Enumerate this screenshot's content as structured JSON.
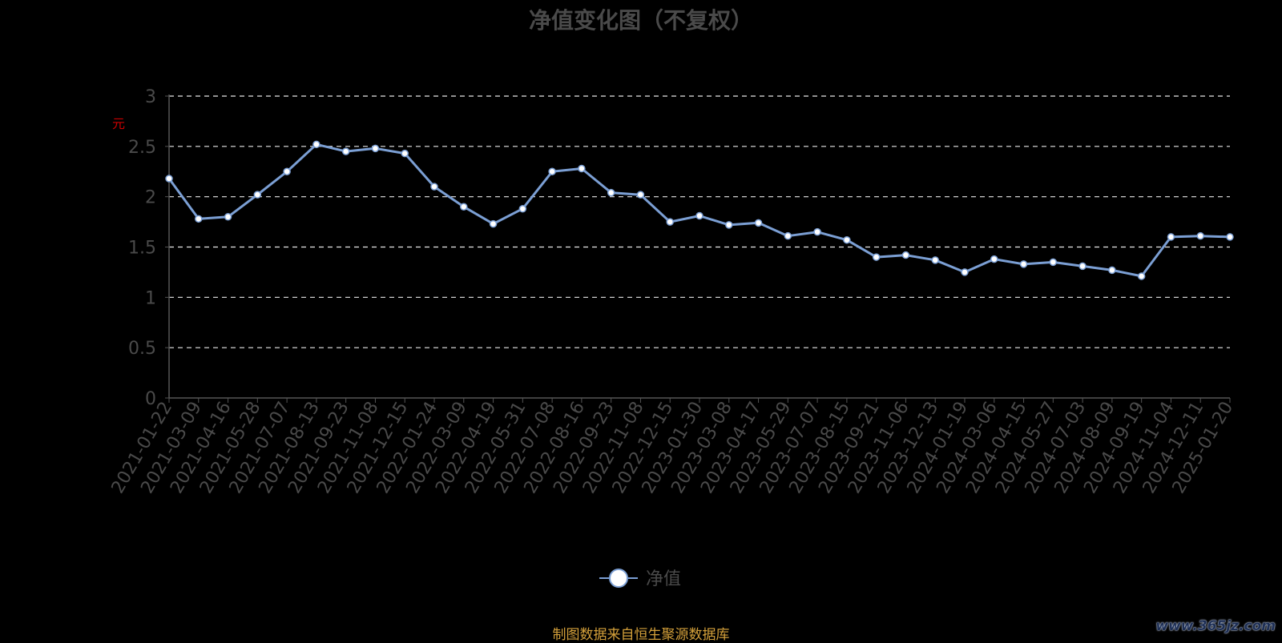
{
  "chart_data": {
    "type": "line",
    "title": "净值变化图（不复权）",
    "ylabel": "元",
    "ylim": [
      0,
      3
    ],
    "y_ticks": [
      "0",
      "0.5",
      "1",
      "1.5",
      "2",
      "2.5",
      "3"
    ],
    "grid": true,
    "legend_position": "bottom",
    "x_tick_labels": [
      "2021-01-22",
      "2021-03-09",
      "2021-04-16",
      "2021-05-28",
      "2021-07-07",
      "2021-08-13",
      "2021-09-23",
      "2021-11-08",
      "2021-12-15",
      "2022-01-24",
      "2022-03-09",
      "2022-04-19",
      "2022-05-31",
      "2022-07-08",
      "2022-08-16",
      "2022-09-23",
      "2022-11-08",
      "2022-12-15",
      "2023-01-30",
      "2023-03-08",
      "2023-04-17",
      "2023-05-29",
      "2023-07-07",
      "2023-08-15",
      "2023-09-21",
      "2023-11-06",
      "2023-12-13",
      "2024-01-19",
      "2024-03-06",
      "2024-04-15",
      "2024-05-27",
      "2024-07-03",
      "2024-08-09",
      "2024-09-19",
      "2024-11-04",
      "2024-12-11",
      "2025-01-20"
    ],
    "series": [
      {
        "name": "净值",
        "color": "#7b9fd4",
        "values": [
          2.18,
          1.78,
          1.8,
          2.02,
          2.25,
          2.52,
          2.45,
          2.48,
          2.43,
          2.1,
          1.9,
          1.73,
          1.88,
          2.25,
          2.28,
          2.04,
          2.02,
          1.75,
          1.81,
          1.72,
          1.74,
          1.61,
          1.65,
          1.57,
          1.4,
          1.42,
          1.37,
          1.25,
          1.38,
          1.33,
          1.35,
          1.31,
          1.27,
          1.21,
          1.6,
          1.61,
          1.6
        ]
      }
    ]
  },
  "legend": {
    "label": "净值"
  },
  "footer": {
    "source": "制图数据来自恒生聚源数据库",
    "watermark": "www.365jz.com"
  }
}
